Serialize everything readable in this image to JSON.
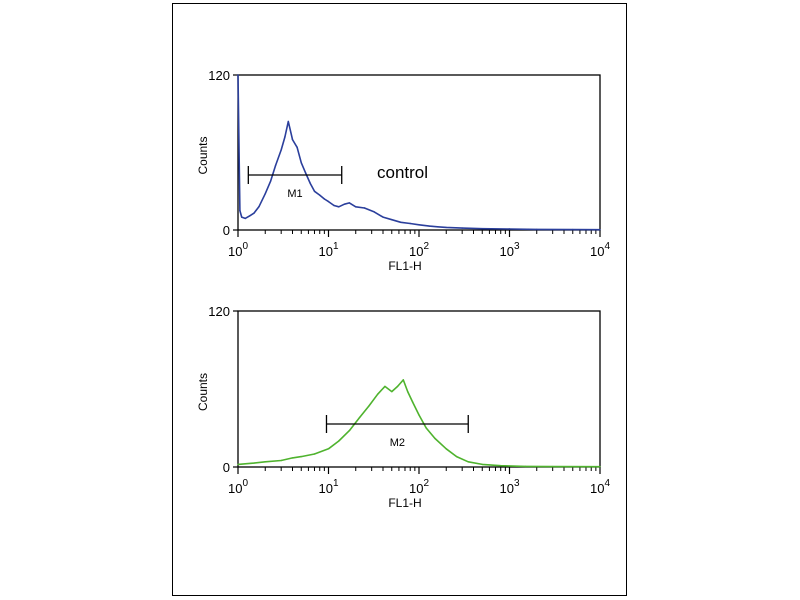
{
  "chart_data": [
    {
      "type": "line",
      "xscale": "log",
      "xlabel": "FL1-H",
      "ylabel": "Counts",
      "xlim": [
        1,
        10000
      ],
      "ylim": [
        0,
        120
      ],
      "x_ticks": [
        {
          "base": "10",
          "exp": "0"
        },
        {
          "base": "10",
          "exp": "1"
        },
        {
          "base": "10",
          "exp": "2"
        },
        {
          "base": "10",
          "exp": "3"
        },
        {
          "base": "10",
          "exp": "4"
        }
      ],
      "y_ticks": [
        "0",
        "120"
      ],
      "annotation": "control",
      "color": "#2b3f9c",
      "marker": {
        "label": "M1",
        "x_start": 1.3,
        "x_end": 14
      },
      "series": [
        {
          "x": [
            1.0,
            1.05,
            1.1,
            1.2,
            1.35,
            1.5,
            1.7,
            2.0,
            2.3,
            2.6,
            3.0,
            3.3,
            3.6,
            4.0,
            4.5,
            5.0,
            5.6,
            6.3,
            7.0,
            8.0,
            9.0,
            10.0,
            11.5,
            13.0,
            15.0,
            17.0,
            20.0,
            25.0,
            32.0,
            40.0,
            50.0,
            63.0,
            80.0,
            100.0,
            130.0,
            160.0,
            200.0,
            300.0,
            500.0,
            1000.0,
            2000.0,
            5000.0,
            10000.0
          ],
          "y": [
            120,
            15,
            10,
            9,
            11,
            13,
            18,
            28,
            38,
            50,
            62,
            72,
            84,
            70,
            64,
            52,
            44,
            36,
            30,
            27,
            24,
            22,
            19,
            18,
            20,
            21,
            18,
            17,
            14,
            10,
            8,
            6,
            5,
            4,
            3,
            2.5,
            2,
            1.5,
            1,
            0.8,
            0.5,
            0.3,
            0.2
          ]
        }
      ]
    },
    {
      "type": "line",
      "xscale": "log",
      "xlabel": "FL1-H",
      "ylabel": "Counts",
      "xlim": [
        1,
        10000
      ],
      "ylim": [
        0,
        120
      ],
      "x_ticks": [
        {
          "base": "10",
          "exp": "0"
        },
        {
          "base": "10",
          "exp": "1"
        },
        {
          "base": "10",
          "exp": "2"
        },
        {
          "base": "10",
          "exp": "3"
        },
        {
          "base": "10",
          "exp": "4"
        }
      ],
      "y_ticks": [
        "0",
        "120"
      ],
      "color": "#4fb32e",
      "marker": {
        "label": "M2",
        "x_start": 9.5,
        "x_end": 350
      },
      "series": [
        {
          "x": [
            1.0,
            1.5,
            2.0,
            3.0,
            4.0,
            5.0,
            7.0,
            10.0,
            13.0,
            17.0,
            22.0,
            28.0,
            35.0,
            42.0,
            50.0,
            58.0,
            67.0,
            75.0,
            85.0,
            100.0,
            120.0,
            150.0,
            200.0,
            260.0,
            350.0,
            500.0,
            800.0,
            1500.0,
            3000.0,
            10000.0
          ],
          "y": [
            2,
            3,
            4,
            5,
            7,
            8,
            10,
            14,
            20,
            28,
            38,
            47,
            56,
            62,
            58,
            62,
            67,
            58,
            50,
            40,
            30,
            22,
            14,
            8,
            4,
            2,
            1,
            0.5,
            0.3,
            0.2
          ]
        }
      ]
    }
  ]
}
